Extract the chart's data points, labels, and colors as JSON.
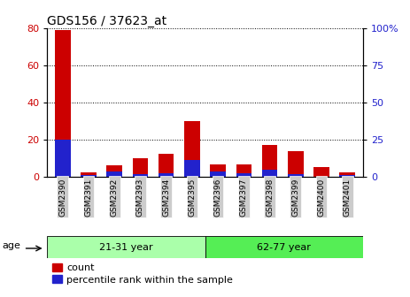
{
  "title": "GDS156 / 37623_at",
  "samples": [
    "GSM2390",
    "GSM2391",
    "GSM2392",
    "GSM2393",
    "GSM2394",
    "GSM2395",
    "GSM2396",
    "GSM2397",
    "GSM2398",
    "GSM2399",
    "GSM2400",
    "GSM2401"
  ],
  "red_values": [
    79,
    2.5,
    6,
    10,
    12.5,
    30,
    6.5,
    6.5,
    17,
    14,
    5,
    2.5
  ],
  "blue_percent": [
    25,
    1.25,
    3.75,
    1.875,
    2.5,
    11.25,
    3.75,
    2.5,
    5,
    1.875,
    0,
    1.25
  ],
  "ylim_left": [
    0,
    80
  ],
  "ylim_right": [
    0,
    100
  ],
  "yticks_left": [
    0,
    20,
    40,
    60,
    80
  ],
  "yticks_right": [
    0,
    25,
    50,
    75,
    100
  ],
  "group1_label": "21-31 year",
  "group1_count": 6,
  "group2_label": "62-77 year",
  "group2_count": 6,
  "age_label": "age",
  "group1_color": "#aaffaa",
  "group2_color": "#55ee55",
  "red_color": "#cc0000",
  "blue_color": "#2222cc",
  "tick_color_left": "#cc0000",
  "tick_color_right": "#2222cc",
  "xticklabel_bg": "#cccccc",
  "legend_count": "count",
  "legend_percentile": "percentile rank within the sample"
}
